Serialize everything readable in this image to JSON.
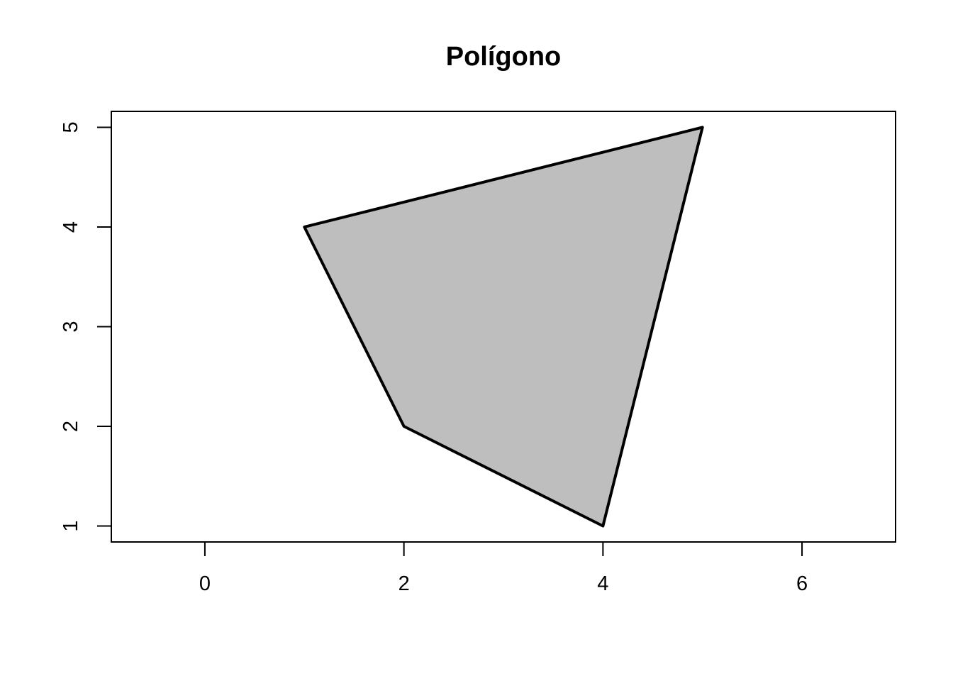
{
  "chart_data": {
    "type": "polygon",
    "title": "Polígono",
    "xlabel": "",
    "ylabel": "",
    "xlim": [
      -0.94,
      6.94
    ],
    "ylim": [
      0.84,
      5.16
    ],
    "x_ticks": [
      0,
      2,
      4,
      6
    ],
    "y_ticks": [
      1,
      2,
      3,
      4,
      5
    ],
    "points": [
      {
        "x": 1,
        "y": 4
      },
      {
        "x": 5,
        "y": 5
      },
      {
        "x": 4,
        "y": 1
      },
      {
        "x": 2,
        "y": 2
      }
    ],
    "fill_color": "#bebebe",
    "border_color": "#000000",
    "grid": false
  }
}
